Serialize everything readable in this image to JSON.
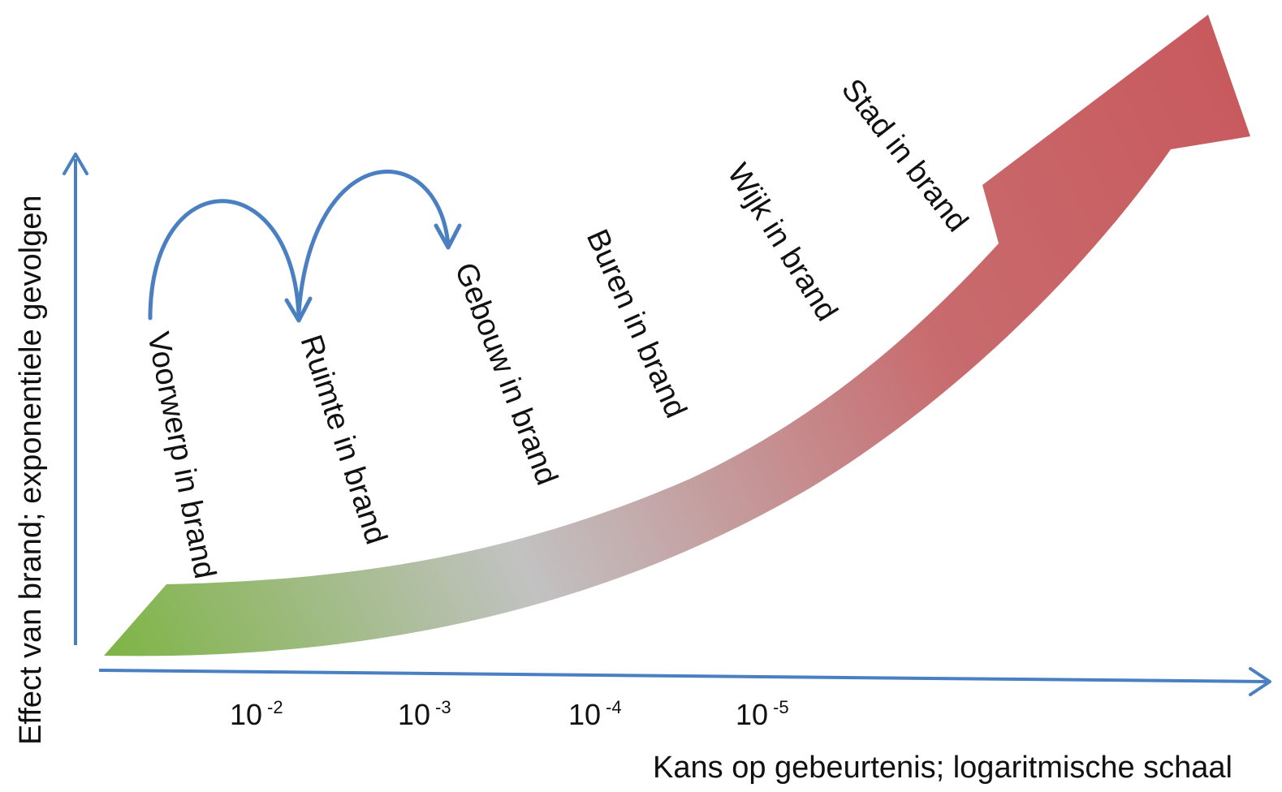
{
  "axes": {
    "y_title": "Effect van brand; exponentiele gevolgen",
    "x_title": "Kans op gebeurtenis; logaritmische schaal",
    "axis_color": "#4a7fc1"
  },
  "ticks": [
    {
      "base": "10",
      "exp": "-2"
    },
    {
      "base": "10",
      "exp": "-3"
    },
    {
      "base": "10",
      "exp": "-4"
    },
    {
      "base": "10",
      "exp": "-5"
    }
  ],
  "stages": [
    "Voorwerp in brand",
    "Ruimte in brand",
    "Gebouw in brand",
    "Buren in brand",
    "Wijk in brand",
    "Stad in brand"
  ],
  "colors": {
    "arrow_start": "#7db443",
    "arrow_mid": "#c2c2c2",
    "arrow_end": "#c85a5e",
    "hop_arrows": "#4a7fc1"
  }
}
